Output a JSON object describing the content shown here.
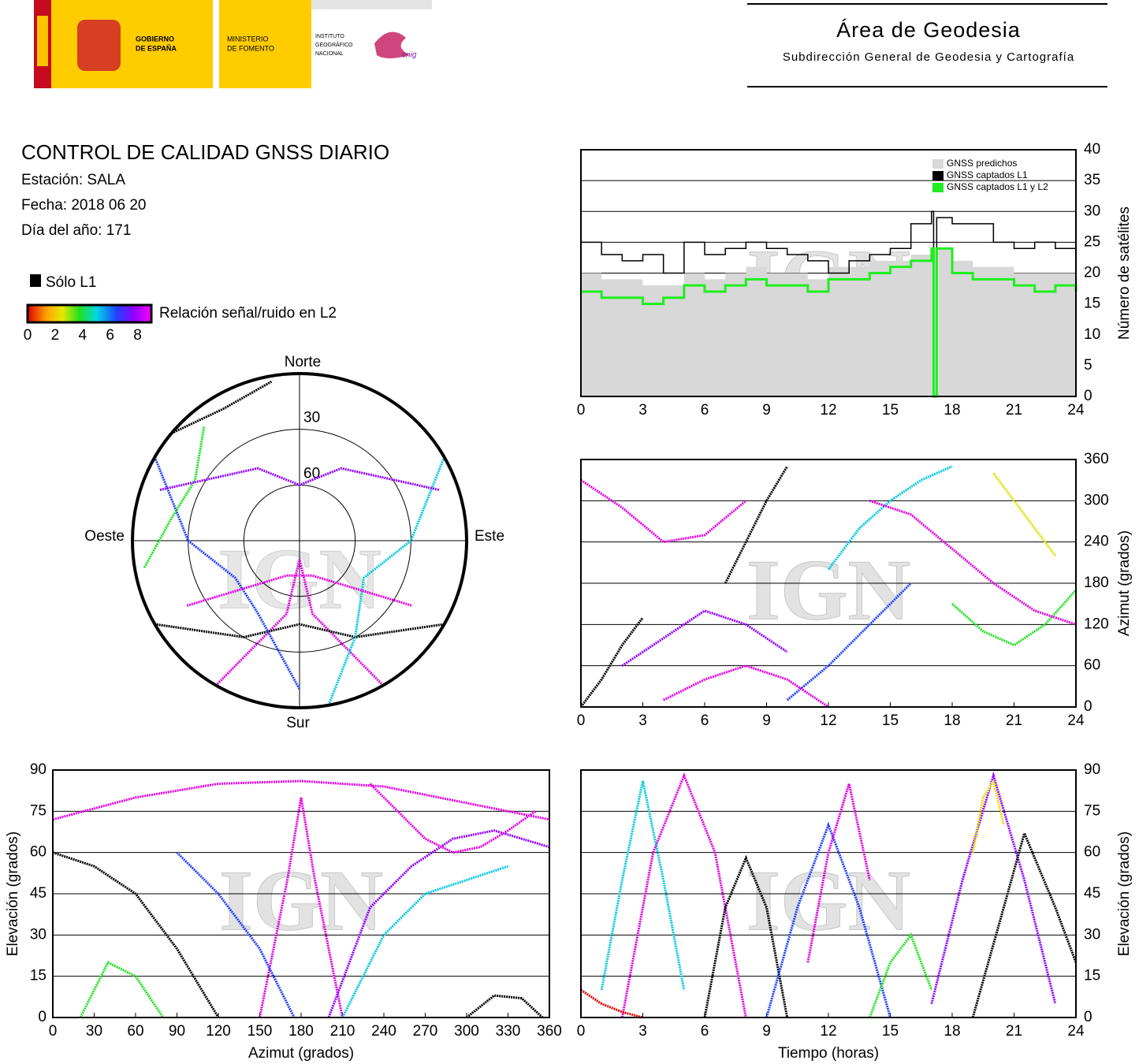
{
  "header": {
    "gobierno": [
      "GOBIERNO",
      "DE ESPAÑA"
    ],
    "ministerio": [
      "MINISTERIO",
      "DE FOMENTO"
    ],
    "instituto": [
      "INSTITUTO",
      "GEOGRÁFICO",
      "NACIONAL"
    ],
    "cnig": "cnig",
    "area": "Área de Geodesia",
    "subdireccion": "Subdirección General de Geodesia y Cartografía"
  },
  "report": {
    "title": "CONTROL DE CALIDAD GNSS DIARIO",
    "station": "Estación: SALA",
    "date": "Fecha: 2018 06 20",
    "doy": "Día del año: 171"
  },
  "legend": {
    "l1_only": "Sólo L1",
    "snr_label": "Relación señal/ruido en L2",
    "snr_ticks": [
      0,
      2,
      4,
      6,
      8
    ],
    "snr_lim": [
      0,
      9
    ]
  },
  "chart_data": [
    {
      "type": "polar",
      "watermark": "IGN",
      "directions": {
        "north": "Norte",
        "east": "Este",
        "south": "Sur",
        "west": "Oeste"
      },
      "rlim": [
        0,
        90
      ],
      "rticks": [
        30,
        60
      ],
      "series": [
        {
          "color": "#e000e0",
          "x": [
            150,
            170,
            180,
            190,
            210
          ],
          "values": [
            0,
            50,
            80,
            50,
            0
          ]
        },
        {
          "color": "#000000",
          "x": [
            120,
            150,
            180,
            210,
            240
          ],
          "values": [
            0,
            30,
            45,
            30,
            0
          ]
        },
        {
          "color": "#2040ff",
          "x": [
            300,
            270,
            240,
            210,
            180
          ],
          "values": [
            0,
            30,
            50,
            45,
            10
          ]
        },
        {
          "color": "#00c8e0",
          "x": [
            60,
            90,
            120,
            150,
            170
          ],
          "values": [
            0,
            30,
            50,
            30,
            0
          ]
        },
        {
          "color": "#20e020",
          "x": [
            320,
            300,
            280,
            260
          ],
          "values": [
            10,
            25,
            20,
            5
          ]
        },
        {
          "color": "#9000ff",
          "x": [
            290,
            330,
            0,
            30,
            70
          ],
          "values": [
            10,
            45,
            60,
            45,
            10
          ]
        },
        {
          "color": "#e000e0",
          "x": [
            240,
            200,
            160,
            120
          ],
          "values": [
            20,
            70,
            70,
            20
          ]
        },
        {
          "color": "#000000",
          "x": [
            310,
            330,
            350
          ],
          "values": [
            0,
            8,
            3
          ]
        }
      ]
    },
    {
      "type": "step",
      "y_label": "Número de satélites",
      "watermark": "IGN",
      "y_axis_side": "right",
      "grid": true,
      "legend_corner": "top-right",
      "xlim": [
        0,
        24
      ],
      "xticks": [
        0,
        3,
        6,
        9,
        12,
        15,
        18,
        21,
        24
      ],
      "ylim": [
        0,
        40
      ],
      "yticks": [
        0,
        5,
        10,
        15,
        20,
        25,
        30,
        35,
        40
      ],
      "x": [
        0,
        1,
        2,
        3,
        4,
        5,
        6,
        7,
        8,
        9,
        10,
        11,
        12,
        13,
        14,
        15,
        16,
        17,
        17.1,
        17.25,
        18,
        19,
        20,
        21,
        22,
        23,
        24
      ],
      "series": [
        {
          "name": "GNSS predichos",
          "color": "#d8d8d8",
          "style": "area",
          "values": [
            20,
            19,
            19,
            18,
            18,
            20,
            19,
            20,
            21,
            20,
            20,
            19,
            21,
            21,
            22,
            22,
            23,
            24,
            24,
            24,
            22,
            21,
            21,
            20,
            20,
            20,
            20
          ]
        },
        {
          "name": "GNSS captados L1",
          "color": "#000000",
          "style": "line",
          "values": [
            25,
            23,
            22,
            23,
            20,
            25,
            23,
            24,
            25,
            24,
            23,
            22,
            20,
            22,
            23,
            24,
            28,
            30,
            0,
            29,
            28,
            28,
            25,
            24,
            25,
            24,
            25
          ]
        },
        {
          "name": "GNSS captados L1 y L2",
          "color": "#20ee20",
          "style": "line",
          "values": [
            17,
            16,
            16,
            15,
            16,
            18,
            17,
            18,
            19,
            18,
            18,
            17,
            19,
            19,
            20,
            21,
            22,
            24,
            0,
            24,
            20,
            19,
            19,
            18,
            17,
            18,
            17
          ]
        }
      ]
    },
    {
      "type": "tracks",
      "y_label": "Azimut (grados)",
      "watermark": "IGN",
      "y_axis_side": "right",
      "grid": true,
      "xlim": [
        0,
        24
      ],
      "xticks": [
        0,
        3,
        6,
        9,
        12,
        15,
        18,
        21,
        24
      ],
      "ylim": [
        0,
        360
      ],
      "yticks": [
        0,
        60,
        120,
        180,
        240,
        300,
        360
      ],
      "series": [
        {
          "color": "#000000",
          "x": [
            7,
            8,
            9,
            10
          ],
          "values": [
            180,
            240,
            300,
            350
          ]
        },
        {
          "color": "#e000e0",
          "x": [
            0,
            2,
            4,
            6,
            8
          ],
          "values": [
            330,
            290,
            240,
            250,
            300
          ]
        },
        {
          "color": "#2040ff",
          "x": [
            10,
            12,
            14,
            16
          ],
          "values": [
            10,
            60,
            120,
            180
          ]
        },
        {
          "color": "#00c8e0",
          "x": [
            12,
            13.5,
            15,
            16.5,
            18
          ],
          "values": [
            200,
            260,
            300,
            330,
            350
          ]
        },
        {
          "color": "#20e020",
          "x": [
            18,
            19.5,
            21,
            22.5,
            24
          ],
          "values": [
            150,
            110,
            90,
            120,
            170
          ]
        },
        {
          "color": "#9000ff",
          "x": [
            2,
            4,
            6,
            8,
            10
          ],
          "values": [
            60,
            100,
            140,
            120,
            80
          ]
        },
        {
          "color": "#e000e0",
          "x": [
            14,
            16,
            18,
            20,
            22,
            24
          ],
          "values": [
            300,
            280,
            230,
            180,
            140,
            120
          ]
        },
        {
          "color": "#000000",
          "x": [
            0,
            1,
            2,
            3
          ],
          "values": [
            0,
            40,
            90,
            130
          ]
        },
        {
          "color": "#e0e000",
          "x": [
            20,
            21,
            22,
            23
          ],
          "values": [
            340,
            300,
            260,
            220
          ]
        },
        {
          "color": "#e000e0",
          "x": [
            4,
            6,
            8,
            10,
            12
          ],
          "values": [
            10,
            40,
            60,
            40,
            0
          ]
        }
      ]
    },
    {
      "type": "tracks",
      "x_label": "Azimut (grados)",
      "y_label": "Elevación (grados)",
      "watermark": "IGN",
      "y_axis_side": "left",
      "grid": true,
      "xlim": [
        0,
        360
      ],
      "xticks": [
        0,
        30,
        60,
        90,
        120,
        150,
        180,
        210,
        240,
        270,
        300,
        330,
        360
      ],
      "ylim": [
        0,
        90
      ],
      "yticks": [
        0,
        15,
        30,
        45,
        60,
        75,
        90
      ],
      "series": [
        {
          "color": "#e000e0",
          "x": [
            0,
            60,
            120,
            180,
            240,
            300,
            360
          ],
          "values": [
            72,
            80,
            85,
            86,
            84,
            78,
            72
          ]
        },
        {
          "color": "#e000e0",
          "x": [
            150,
            170,
            180,
            190,
            210
          ],
          "values": [
            0,
            50,
            80,
            50,
            0
          ]
        },
        {
          "color": "#2040ff",
          "x": [
            90,
            120,
            150,
            165,
            175
          ],
          "values": [
            60,
            45,
            25,
            10,
            0
          ]
        },
        {
          "color": "#000000",
          "x": [
            0,
            30,
            60,
            90,
            120
          ],
          "values": [
            60,
            55,
            45,
            25,
            0
          ]
        },
        {
          "color": "#00c8e0",
          "x": [
            210,
            240,
            270,
            300,
            330
          ],
          "values": [
            0,
            30,
            45,
            50,
            55
          ]
        },
        {
          "color": "#20e020",
          "x": [
            20,
            40,
            60,
            80
          ],
          "values": [
            0,
            20,
            15,
            0
          ]
        },
        {
          "color": "#9000ff",
          "x": [
            200,
            230,
            260,
            290,
            320,
            360
          ],
          "values": [
            0,
            40,
            55,
            65,
            68,
            62
          ]
        },
        {
          "color": "#000000",
          "x": [
            300,
            320,
            340,
            355
          ],
          "values": [
            0,
            8,
            7,
            0
          ]
        },
        {
          "color": "#e000e0",
          "x": [
            230,
            250,
            270,
            290,
            310,
            330,
            350
          ],
          "values": [
            85,
            75,
            65,
            60,
            62,
            68,
            75
          ]
        }
      ]
    },
    {
      "type": "tracks",
      "x_label": "Tiempo (horas)",
      "y_label": "Elevación (grados)",
      "watermark": "IGN",
      "y_axis_side": "right",
      "grid": true,
      "xlim": [
        0,
        24
      ],
      "xticks": [
        0,
        3,
        6,
        9,
        12,
        15,
        18,
        21,
        24
      ],
      "ylim": [
        0,
        90
      ],
      "yticks": [
        0,
        15,
        30,
        45,
        60,
        75,
        90
      ],
      "series": [
        {
          "color": "#e000e0",
          "x": [
            2,
            3.5,
            5,
            6.5,
            8
          ],
          "values": [
            0,
            60,
            88,
            60,
            0
          ]
        },
        {
          "color": "#000000",
          "x": [
            6,
            7,
            8,
            9,
            10
          ],
          "values": [
            0,
            40,
            58,
            40,
            0
          ]
        },
        {
          "color": "#00c8e0",
          "x": [
            1,
            2,
            3,
            4,
            5
          ],
          "values": [
            10,
            50,
            86,
            50,
            10
          ]
        },
        {
          "color": "#2040ff",
          "x": [
            9,
            10.5,
            12,
            13.5,
            15
          ],
          "values": [
            0,
            40,
            70,
            40,
            0
          ]
        },
        {
          "color": "#20e020",
          "x": [
            14,
            15,
            16,
            17
          ],
          "values": [
            0,
            20,
            30,
            10
          ]
        },
        {
          "color": "#9000ff",
          "x": [
            17,
            18.5,
            20,
            21.5,
            23
          ],
          "values": [
            5,
            50,
            88,
            50,
            5
          ]
        },
        {
          "color": "#000000",
          "x": [
            19,
            20.5,
            21.5,
            23,
            24
          ],
          "values": [
            0,
            40,
            67,
            40,
            20
          ]
        },
        {
          "color": "#e000e0",
          "x": [
            11,
            12,
            13,
            14
          ],
          "values": [
            20,
            60,
            85,
            50
          ]
        },
        {
          "color": "#e00000",
          "x": [
            0,
            1,
            2,
            3
          ],
          "values": [
            10,
            5,
            2,
            0
          ]
        },
        {
          "color": "#e0e000",
          "x": [
            19,
            19.5,
            20,
            20.5
          ],
          "values": [
            60,
            80,
            86,
            70
          ]
        }
      ]
    }
  ]
}
